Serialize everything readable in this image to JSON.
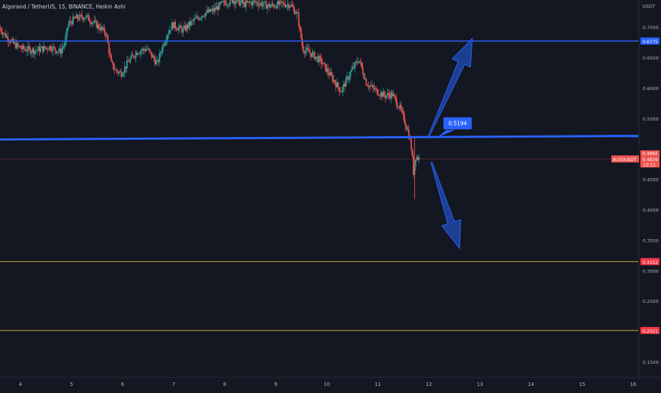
{
  "header": {
    "symbol_title": "Algorand / TetherUS, 15, BINANCE, Heikin Ashi"
  },
  "axis": {
    "currency": "USDT"
  },
  "chart_data": {
    "type": "candlestick",
    "chart_style": "Heikin Ashi",
    "interval": "15",
    "exchange": "BINANCE",
    "symbol": "ALGOUSDT",
    "x_ticks": [
      "4",
      "5",
      "6",
      "7",
      "8",
      "9",
      "10",
      "11",
      "12",
      "13",
      "14",
      "15",
      "16"
    ],
    "x_range": [
      3.6,
      16.1
    ],
    "y_ticks": [
      0.7,
      0.65,
      0.6,
      0.55,
      0.45,
      0.4,
      0.35,
      0.3,
      0.25,
      0.15
    ],
    "y_tick_labels": [
      "0.7000",
      "0.6500",
      "0.6000",
      "0.5500",
      "0.4500",
      "0.4000",
      "0.3500",
      "0.3000",
      "0.2500",
      "0.1500"
    ],
    "y_range": [
      0.125,
      0.745
    ],
    "grid": false,
    "price_path": [
      [
        3.6,
        0.7
      ],
      [
        3.75,
        0.685
      ],
      [
        3.9,
        0.672
      ],
      [
        4.05,
        0.665
      ],
      [
        4.3,
        0.662
      ],
      [
        4.6,
        0.668
      ],
      [
        4.8,
        0.66
      ],
      [
        4.9,
        0.675
      ],
      [
        4.95,
        0.705
      ],
      [
        5.1,
        0.715
      ],
      [
        5.3,
        0.718
      ],
      [
        5.5,
        0.705
      ],
      [
        5.7,
        0.69
      ],
      [
        5.8,
        0.64
      ],
      [
        5.9,
        0.628
      ],
      [
        6.0,
        0.625
      ],
      [
        6.15,
        0.645
      ],
      [
        6.3,
        0.66
      ],
      [
        6.5,
        0.665
      ],
      [
        6.7,
        0.64
      ],
      [
        6.8,
        0.668
      ],
      [
        6.9,
        0.69
      ],
      [
        7.0,
        0.705
      ],
      [
        7.2,
        0.695
      ],
      [
        7.4,
        0.71
      ],
      [
        7.6,
        0.722
      ],
      [
        7.8,
        0.728
      ],
      [
        8.0,
        0.74
      ],
      [
        8.2,
        0.745
      ],
      [
        8.4,
        0.738
      ],
      [
        8.6,
        0.742
      ],
      [
        8.9,
        0.735
      ],
      [
        9.1,
        0.738
      ],
      [
        9.3,
        0.738
      ],
      [
        9.45,
        0.72
      ],
      [
        9.55,
        0.665
      ],
      [
        9.75,
        0.655
      ],
      [
        9.9,
        0.645
      ],
      [
        10.1,
        0.62
      ],
      [
        10.3,
        0.595
      ],
      [
        10.5,
        0.628
      ],
      [
        10.65,
        0.648
      ],
      [
        10.8,
        0.608
      ],
      [
        11.0,
        0.595
      ],
      [
        11.15,
        0.588
      ],
      [
        11.3,
        0.59
      ],
      [
        11.45,
        0.568
      ],
      [
        11.55,
        0.545
      ],
      [
        11.62,
        0.528
      ],
      [
        11.68,
        0.5
      ],
      [
        11.72,
        0.46
      ],
      [
        11.76,
        0.488
      ],
      [
        11.82,
        0.485
      ]
    ],
    "annotations": {
      "horizontal_lines": [
        {
          "label": "0.6775",
          "value": 0.6775,
          "color": "#2962ff"
        },
        {
          "label": "0.5194",
          "value": 0.5194,
          "color": "#2962ff"
        },
        {
          "label": "0.3152",
          "value": 0.3152,
          "color": "#d4b144"
        },
        {
          "label": "0.2021",
          "value": 0.2021,
          "color": "#d4b144"
        }
      ],
      "arrows": [
        {
          "direction": "up",
          "from": [
            12.0,
            0.522
          ],
          "to": [
            12.85,
            0.682
          ]
        },
        {
          "direction": "down",
          "from": [
            12.05,
            0.478
          ],
          "to": [
            12.6,
            0.337
          ]
        }
      ],
      "callout": {
        "text": "0.5194",
        "at": [
          12.2,
          0.522
        ]
      }
    },
    "current": {
      "symbol_label": "ALGOUSDT",
      "price_label": "0.4839",
      "countdown": "12:11",
      "prev_label": "0.4864",
      "value": 0.4839
    }
  }
}
